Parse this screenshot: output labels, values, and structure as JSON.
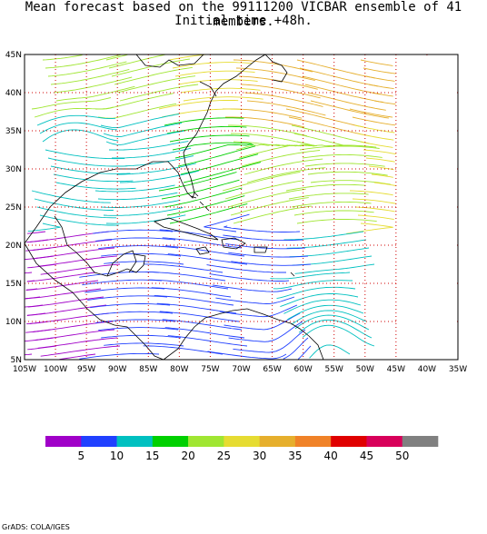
{
  "title": {
    "line1": "Mean forecast based on the 99111200 VICBAR ensemble of 41 members.",
    "line2": "Initial time +48h."
  },
  "map": {
    "lon_labels": [
      "105W",
      "100W",
      "95W",
      "90W",
      "85W",
      "80W",
      "75W",
      "70W",
      "65W",
      "60W",
      "55W",
      "50W",
      "45W",
      "40W",
      "35W"
    ],
    "lat_labels": [
      "45N",
      "40N",
      "35N",
      "30N",
      "25N",
      "20N",
      "15N",
      "10N",
      "5N"
    ],
    "grid_color": "#d00000",
    "coast_color": "#000000"
  },
  "colorbar": {
    "colors": [
      "#a000c8",
      "#2040ff",
      "#00c0c0",
      "#00d000",
      "#a0e632",
      "#e6dc32",
      "#e6af2d",
      "#f08228",
      "#e00000",
      "#d8005a",
      "#808080"
    ],
    "labels": [
      "5",
      "10",
      "15",
      "20",
      "25",
      "30",
      "35",
      "40",
      "45",
      "50"
    ]
  },
  "credit": "GrADS: COLA/IGES"
}
